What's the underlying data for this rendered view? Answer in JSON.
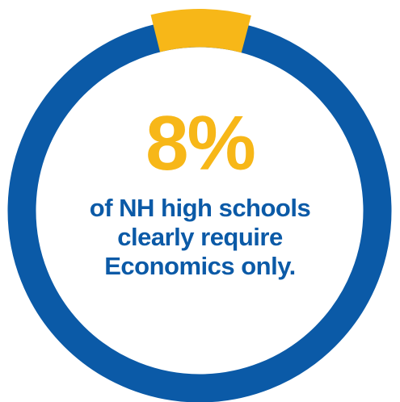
{
  "chart_data": {
    "type": "pie",
    "value_label": "8%",
    "caption_lines": [
      "of NH high schools",
      "clearly require",
      "Economics only."
    ],
    "slices": [
      {
        "value": 8,
        "color": "#F7B718"
      },
      {
        "value": 92,
        "color": "#0B5AA7"
      }
    ]
  },
  "colors": {
    "highlight": "#F7B718",
    "ring": "#0B5AA7",
    "text": "#0B5AA7"
  }
}
